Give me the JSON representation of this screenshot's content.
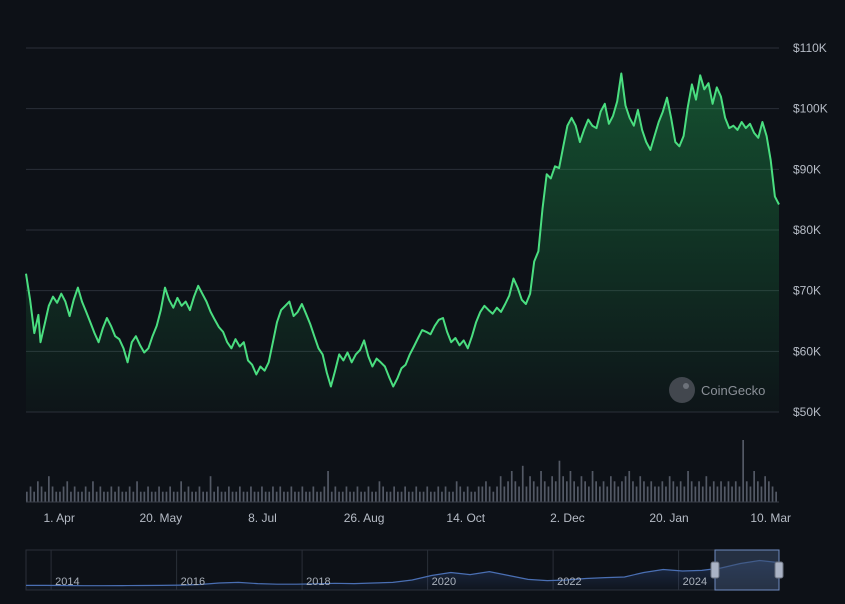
{
  "chart_data": {
    "type": "area",
    "title": "",
    "xlabel": "",
    "ylabel": "",
    "currency": "USD",
    "ylim": [
      50000,
      110000
    ],
    "y_ticks": [
      {
        "value": 50000,
        "label": "$50K"
      },
      {
        "value": 60000,
        "label": "$60K"
      },
      {
        "value": 70000,
        "label": "$70K"
      },
      {
        "value": 80000,
        "label": "$80K"
      },
      {
        "value": 90000,
        "label": "$90K"
      },
      {
        "value": 100000,
        "label": "$100K"
      },
      {
        "value": 110000,
        "label": "$110K"
      }
    ],
    "x_ticks": [
      {
        "label": "1. Apr",
        "day": 16
      },
      {
        "label": "20. May",
        "day": 65
      },
      {
        "label": "8. Jul",
        "day": 114
      },
      {
        "label": "26. Aug",
        "day": 163
      },
      {
        "label": "14. Oct",
        "day": 212
      },
      {
        "label": "2. Dec",
        "day": 261
      },
      {
        "label": "20. Jan",
        "day": 310
      },
      {
        "label": "10. Mar",
        "day": 359
      }
    ],
    "x_range_days": [
      0,
      363
    ],
    "series": [
      {
        "name": "Price (USD)",
        "color": "#4ade80",
        "points": [
          [
            0,
            72800
          ],
          [
            2,
            68500
          ],
          [
            4,
            63000
          ],
          [
            6,
            66000
          ],
          [
            7,
            61500
          ],
          [
            9,
            64500
          ],
          [
            11,
            67500
          ],
          [
            13,
            69000
          ],
          [
            15,
            68000
          ],
          [
            17,
            69500
          ],
          [
            19,
            68200
          ],
          [
            21,
            65800
          ],
          [
            23,
            68500
          ],
          [
            25,
            70500
          ],
          [
            27,
            68200
          ],
          [
            29,
            66500
          ],
          [
            31,
            64800
          ],
          [
            33,
            63000
          ],
          [
            35,
            61500
          ],
          [
            37,
            63800
          ],
          [
            39,
            65500
          ],
          [
            41,
            64200
          ],
          [
            43,
            62500
          ],
          [
            45,
            62000
          ],
          [
            47,
            60500
          ],
          [
            49,
            58200
          ],
          [
            51,
            61500
          ],
          [
            53,
            62500
          ],
          [
            55,
            61000
          ],
          [
            57,
            59800
          ],
          [
            59,
            60500
          ],
          [
            61,
            62500
          ],
          [
            63,
            64200
          ],
          [
            65,
            66800
          ],
          [
            67,
            70500
          ],
          [
            69,
            68500
          ],
          [
            71,
            67200
          ],
          [
            73,
            68800
          ],
          [
            75,
            67500
          ],
          [
            77,
            68200
          ],
          [
            79,
            66800
          ],
          [
            81,
            69000
          ],
          [
            83,
            70800
          ],
          [
            85,
            69500
          ],
          [
            87,
            68200
          ],
          [
            89,
            66500
          ],
          [
            91,
            65200
          ],
          [
            93,
            64000
          ],
          [
            95,
            63200
          ],
          [
            97,
            61500
          ],
          [
            99,
            60500
          ],
          [
            101,
            62000
          ],
          [
            103,
            60800
          ],
          [
            105,
            61500
          ],
          [
            107,
            58500
          ],
          [
            109,
            57800
          ],
          [
            111,
            56200
          ],
          [
            113,
            57500
          ],
          [
            115,
            56800
          ],
          [
            117,
            58200
          ],
          [
            119,
            61500
          ],
          [
            121,
            64800
          ],
          [
            123,
            66800
          ],
          [
            125,
            67500
          ],
          [
            127,
            68200
          ],
          [
            129,
            65800
          ],
          [
            131,
            66500
          ],
          [
            133,
            67800
          ],
          [
            135,
            66200
          ],
          [
            137,
            64500
          ],
          [
            139,
            62500
          ],
          [
            141,
            60500
          ],
          [
            143,
            59500
          ],
          [
            145,
            56500
          ],
          [
            147,
            54200
          ],
          [
            149,
            56800
          ],
          [
            151,
            59500
          ],
          [
            153,
            58500
          ],
          [
            155,
            59800
          ],
          [
            157,
            58200
          ],
          [
            159,
            59500
          ],
          [
            161,
            60200
          ],
          [
            163,
            61800
          ],
          [
            165,
            59200
          ],
          [
            167,
            57500
          ],
          [
            169,
            58800
          ],
          [
            171,
            58200
          ],
          [
            173,
            57500
          ],
          [
            175,
            55800
          ],
          [
            177,
            54200
          ],
          [
            179,
            55500
          ],
          [
            181,
            57200
          ],
          [
            183,
            57800
          ],
          [
            185,
            59500
          ],
          [
            187,
            60800
          ],
          [
            189,
            62200
          ],
          [
            191,
            63500
          ],
          [
            193,
            63200
          ],
          [
            195,
            62800
          ],
          [
            197,
            64200
          ],
          [
            199,
            65200
          ],
          [
            201,
            65500
          ],
          [
            203,
            63200
          ],
          [
            205,
            61500
          ],
          [
            207,
            62200
          ],
          [
            209,
            61000
          ],
          [
            211,
            61800
          ],
          [
            213,
            60500
          ],
          [
            215,
            62500
          ],
          [
            217,
            64800
          ],
          [
            219,
            66500
          ],
          [
            221,
            67500
          ],
          [
            223,
            66800
          ],
          [
            225,
            66200
          ],
          [
            227,
            67200
          ],
          [
            229,
            66500
          ],
          [
            231,
            67800
          ],
          [
            233,
            69200
          ],
          [
            235,
            72000
          ],
          [
            237,
            70500
          ],
          [
            239,
            68500
          ],
          [
            241,
            67800
          ],
          [
            243,
            69500
          ],
          [
            245,
            74800
          ],
          [
            247,
            76500
          ],
          [
            249,
            83500
          ],
          [
            251,
            89200
          ],
          [
            253,
            88500
          ],
          [
            255,
            90500
          ],
          [
            257,
            90200
          ],
          [
            259,
            93800
          ],
          [
            261,
            97200
          ],
          [
            263,
            98500
          ],
          [
            265,
            97200
          ],
          [
            267,
            94500
          ],
          [
            269,
            96500
          ],
          [
            271,
            98200
          ],
          [
            273,
            97200
          ],
          [
            275,
            96800
          ],
          [
            277,
            99500
          ],
          [
            279,
            100800
          ],
          [
            281,
            97500
          ],
          [
            283,
            98800
          ],
          [
            285,
            101200
          ],
          [
            287,
            105800
          ],
          [
            289,
            100500
          ],
          [
            291,
            98500
          ],
          [
            293,
            97200
          ],
          [
            295,
            99800
          ],
          [
            297,
            96500
          ],
          [
            299,
            94500
          ],
          [
            301,
            93200
          ],
          [
            303,
            95500
          ],
          [
            305,
            97800
          ],
          [
            307,
            99500
          ],
          [
            309,
            101800
          ],
          [
            311,
            98500
          ],
          [
            313,
            94500
          ],
          [
            315,
            93800
          ],
          [
            317,
            95500
          ],
          [
            319,
            100200
          ],
          [
            321,
            104000
          ],
          [
            323,
            101500
          ],
          [
            325,
            105500
          ],
          [
            327,
            103200
          ],
          [
            329,
            104200
          ],
          [
            331,
            100800
          ],
          [
            333,
            103500
          ],
          [
            335,
            102000
          ],
          [
            337,
            98500
          ],
          [
            339,
            96800
          ],
          [
            341,
            97200
          ],
          [
            343,
            96500
          ],
          [
            345,
            97800
          ],
          [
            347,
            96800
          ],
          [
            349,
            97500
          ],
          [
            351,
            96000
          ],
          [
            353,
            95200
          ],
          [
            355,
            97800
          ],
          [
            357,
            95500
          ],
          [
            359,
            91500
          ],
          [
            361,
            85500
          ],
          [
            363,
            84200
          ]
        ]
      }
    ],
    "volume": {
      "color": "#6b7280",
      "bars": [
        2,
        3,
        2,
        4,
        3,
        2,
        5,
        3,
        2,
        2,
        3,
        4,
        2,
        3,
        2,
        2,
        3,
        2,
        4,
        2,
        3,
        2,
        2,
        3,
        2,
        3,
        2,
        2,
        3,
        2,
        4,
        2,
        2,
        3,
        2,
        2,
        3,
        2,
        2,
        3,
        2,
        2,
        4,
        2,
        3,
        2,
        2,
        3,
        2,
        2,
        5,
        2,
        3,
        2,
        2,
        3,
        2,
        2,
        3,
        2,
        2,
        3,
        2,
        2,
        3,
        2,
        2,
        3,
        2,
        3,
        2,
        2,
        3,
        2,
        2,
        3,
        2,
        2,
        3,
        2,
        2,
        3,
        6,
        2,
        3,
        2,
        2,
        3,
        2,
        2,
        3,
        2,
        2,
        3,
        2,
        2,
        4,
        3,
        2,
        2,
        3,
        2,
        2,
        3,
        2,
        2,
        3,
        2,
        2,
        3,
        2,
        2,
        3,
        2,
        3,
        2,
        2,
        4,
        3,
        2,
        3,
        2,
        2,
        3,
        3,
        4,
        3,
        2,
        3,
        5,
        3,
        4,
        6,
        4,
        3,
        7,
        3,
        5,
        4,
        3,
        6,
        4,
        3,
        5,
        4,
        8,
        5,
        4,
        6,
        4,
        3,
        5,
        4,
        3,
        6,
        4,
        3,
        4,
        3,
        5,
        4,
        3,
        4,
        5,
        6,
        4,
        3,
        5,
        4,
        3,
        4,
        3,
        3,
        4,
        3,
        5,
        4,
        3,
        4,
        3,
        6,
        4,
        3,
        4,
        3,
        5,
        3,
        4,
        3,
        4,
        3,
        4,
        3,
        4,
        3,
        12,
        4,
        3,
        6,
        4,
        3,
        5,
        4,
        3,
        2
      ],
      "max_value": 12
    },
    "navigator": {
      "year_labels": [
        "2014",
        "2016",
        "2018",
        "2020",
        "2022",
        "2024"
      ]
    }
  },
  "watermark": {
    "text": "CoinGecko"
  },
  "colors": {
    "background": "#0d1117",
    "line": "#4ade80",
    "grid": "#2a2f38",
    "axis_text": "#b6bcc6",
    "navigator_line": "#4a6fb3",
    "navigator_window": "#3b4a66"
  }
}
